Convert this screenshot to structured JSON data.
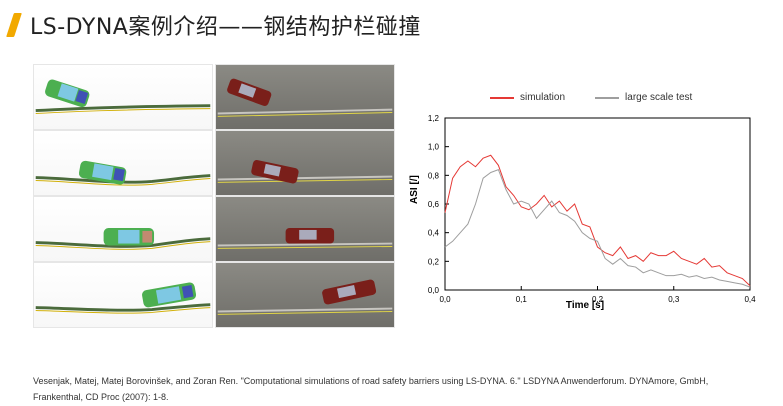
{
  "page": {
    "title": "LS-DYNA案例介绍——钢结构护栏碰撞",
    "citation_line1": "Vesenjak, Matej, Matej Borovinšek, and Zoran Ren. \"Computational simulations of road safety barriers using LS-DYNA. 6.\" LSDYNA Anwenderforum. DYNAmore, GmbH,",
    "citation_line2": "Frankenthal, CD Proc (2007): 1-8."
  },
  "colors": {
    "accent": "#f2a900",
    "simulation": "#e53935",
    "test": "#9e9e9e"
  },
  "chart_data": {
    "type": "line",
    "xlabel": "Time [s]",
    "ylabel": "ASI [/]",
    "xlim": [
      0,
      0.4
    ],
    "ylim": [
      0,
      1.2
    ],
    "x_ticks": [
      "0,0",
      "0,1",
      "0,2",
      "0,3",
      "0,4"
    ],
    "y_ticks": [
      "0,0",
      "0,2",
      "0,4",
      "0,6",
      "0,8",
      "1,0",
      "1,2"
    ],
    "grid": false,
    "legend_placement": "top",
    "series": [
      {
        "name": "simulation",
        "color": "#e53935",
        "points": [
          [
            0.0,
            0.54
          ],
          [
            0.01,
            0.78
          ],
          [
            0.02,
            0.86
          ],
          [
            0.03,
            0.9
          ],
          [
            0.04,
            0.86
          ],
          [
            0.05,
            0.92
          ],
          [
            0.06,
            0.94
          ],
          [
            0.07,
            0.87
          ],
          [
            0.08,
            0.72
          ],
          [
            0.09,
            0.66
          ],
          [
            0.1,
            0.58
          ],
          [
            0.11,
            0.56
          ],
          [
            0.12,
            0.6
          ],
          [
            0.13,
            0.66
          ],
          [
            0.14,
            0.58
          ],
          [
            0.15,
            0.62
          ],
          [
            0.16,
            0.55
          ],
          [
            0.17,
            0.6
          ],
          [
            0.18,
            0.46
          ],
          [
            0.19,
            0.44
          ],
          [
            0.2,
            0.3
          ],
          [
            0.21,
            0.26
          ],
          [
            0.22,
            0.24
          ],
          [
            0.23,
            0.3
          ],
          [
            0.24,
            0.22
          ],
          [
            0.25,
            0.24
          ],
          [
            0.26,
            0.2
          ],
          [
            0.27,
            0.26
          ],
          [
            0.28,
            0.24
          ],
          [
            0.29,
            0.24
          ],
          [
            0.3,
            0.27
          ],
          [
            0.31,
            0.22
          ],
          [
            0.32,
            0.2
          ],
          [
            0.33,
            0.18
          ],
          [
            0.34,
            0.22
          ],
          [
            0.35,
            0.16
          ],
          [
            0.36,
            0.17
          ],
          [
            0.37,
            0.12
          ],
          [
            0.38,
            0.1
          ],
          [
            0.39,
            0.08
          ],
          [
            0.4,
            0.03
          ]
        ]
      },
      {
        "name": "large scale test",
        "color": "#9e9e9e",
        "points": [
          [
            0.0,
            0.3
          ],
          [
            0.01,
            0.34
          ],
          [
            0.02,
            0.4
          ],
          [
            0.03,
            0.46
          ],
          [
            0.04,
            0.6
          ],
          [
            0.05,
            0.78
          ],
          [
            0.06,
            0.82
          ],
          [
            0.07,
            0.84
          ],
          [
            0.08,
            0.7
          ],
          [
            0.09,
            0.6
          ],
          [
            0.1,
            0.62
          ],
          [
            0.11,
            0.6
          ],
          [
            0.12,
            0.5
          ],
          [
            0.13,
            0.56
          ],
          [
            0.14,
            0.62
          ],
          [
            0.15,
            0.54
          ],
          [
            0.16,
            0.52
          ],
          [
            0.17,
            0.48
          ],
          [
            0.18,
            0.4
          ],
          [
            0.19,
            0.36
          ],
          [
            0.2,
            0.34
          ],
          [
            0.21,
            0.22
          ],
          [
            0.22,
            0.18
          ],
          [
            0.23,
            0.22
          ],
          [
            0.24,
            0.17
          ],
          [
            0.25,
            0.16
          ],
          [
            0.26,
            0.12
          ],
          [
            0.27,
            0.14
          ],
          [
            0.28,
            0.12
          ],
          [
            0.29,
            0.1
          ],
          [
            0.3,
            0.1
          ],
          [
            0.31,
            0.11
          ],
          [
            0.32,
            0.09
          ],
          [
            0.33,
            0.1
          ],
          [
            0.34,
            0.08
          ],
          [
            0.35,
            0.09
          ],
          [
            0.36,
            0.07
          ],
          [
            0.37,
            0.06
          ],
          [
            0.38,
            0.05
          ],
          [
            0.39,
            0.04
          ],
          [
            0.4,
            0.02
          ]
        ]
      }
    ]
  }
}
